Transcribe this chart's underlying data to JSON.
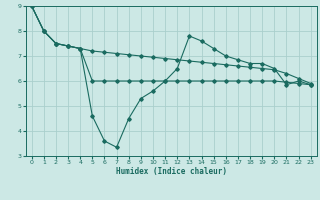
{
  "xlabel": "Humidex (Indice chaleur)",
  "ylabel": "",
  "bg_color": "#cce8e5",
  "grid_color": "#aacfcc",
  "line_color": "#1a6b60",
  "xlim": [
    -0.5,
    23.5
  ],
  "ylim": [
    3,
    9
  ],
  "xticks": [
    0,
    1,
    2,
    3,
    4,
    5,
    6,
    7,
    8,
    9,
    10,
    11,
    12,
    13,
    14,
    15,
    16,
    17,
    18,
    19,
    20,
    21,
    22,
    23
  ],
  "yticks": [
    3,
    4,
    5,
    6,
    7,
    8,
    9
  ],
  "line1_x": [
    0,
    1,
    2,
    3,
    4,
    5,
    6,
    7,
    8,
    9,
    10,
    11,
    12,
    13,
    14,
    15,
    16,
    17,
    18,
    19,
    20,
    21,
    22,
    23
  ],
  "line1_y": [
    9.0,
    8.0,
    7.5,
    7.4,
    7.3,
    4.6,
    3.6,
    3.35,
    4.5,
    5.3,
    5.6,
    6.0,
    6.5,
    7.8,
    7.6,
    7.3,
    7.0,
    6.85,
    6.7,
    6.7,
    6.5,
    5.85,
    6.0,
    5.85
  ],
  "line2_x": [
    0,
    1,
    2,
    3,
    4,
    5,
    6,
    7,
    8,
    9,
    10,
    11,
    12,
    13,
    14,
    15,
    16,
    17,
    18,
    19,
    20,
    21,
    22,
    23
  ],
  "line2_y": [
    9.0,
    8.0,
    7.5,
    7.4,
    7.3,
    7.2,
    7.15,
    7.1,
    7.05,
    7.0,
    6.95,
    6.9,
    6.85,
    6.8,
    6.75,
    6.7,
    6.65,
    6.6,
    6.55,
    6.5,
    6.45,
    6.3,
    6.1,
    5.9
  ],
  "line3_x": [
    0,
    1,
    2,
    3,
    4,
    5,
    6,
    7,
    8,
    9,
    10,
    11,
    12,
    13,
    14,
    15,
    16,
    17,
    18,
    19,
    20,
    21,
    22,
    23
  ],
  "line3_y": [
    9.0,
    8.0,
    7.5,
    7.4,
    7.3,
    6.0,
    6.0,
    6.0,
    6.0,
    6.0,
    6.0,
    6.0,
    6.0,
    6.0,
    6.0,
    6.0,
    6.0,
    6.0,
    6.0,
    6.0,
    6.0,
    5.95,
    5.9,
    5.85
  ]
}
